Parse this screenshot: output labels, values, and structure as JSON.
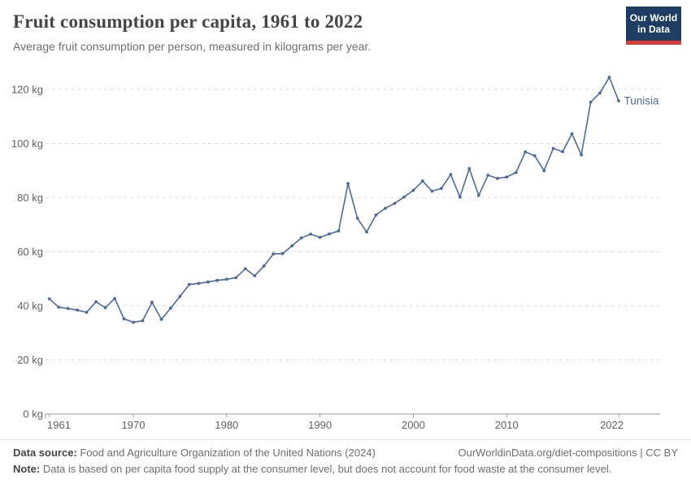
{
  "header": {
    "title": "Fruit consumption per capita, 1961 to 2022",
    "subtitle": "Average fruit consumption per person, measured in kilograms per year.",
    "logo": {
      "line1": "Our World",
      "line2": "in Data"
    }
  },
  "colors": {
    "line": "#4C6A9C",
    "entity_label": "#4C6A9C",
    "grid": "#dcdcdc",
    "axis": "#9a9a9a",
    "tick_text": "#5f5f5f",
    "logo_bg": "#1d3d63",
    "logo_stripe": "#d93b3b"
  },
  "chart_data": {
    "type": "line",
    "title": "Fruit consumption per capita, 1961 to 2022",
    "xlabel": "",
    "ylabel": "",
    "unit_suffix": " kg",
    "ylim": [
      0,
      120
    ],
    "grid": "horizontal-dashed",
    "x_ticks": [
      1961,
      1970,
      1980,
      1990,
      2000,
      2010,
      2022
    ],
    "y_ticks": [
      0,
      20,
      40,
      60,
      80,
      100,
      120
    ],
    "legend_position": "right-of-line-end",
    "series": [
      {
        "name": "Tunisia",
        "years": [
          1961,
          1962,
          1963,
          1964,
          1965,
          1966,
          1967,
          1968,
          1969,
          1970,
          1971,
          1972,
          1973,
          1974,
          1975,
          1976,
          1977,
          1978,
          1979,
          1980,
          1981,
          1982,
          1983,
          1984,
          1985,
          1986,
          1987,
          1988,
          1989,
          1990,
          1991,
          1992,
          1993,
          1994,
          1995,
          1996,
          1997,
          1998,
          1999,
          2000,
          2001,
          2002,
          2003,
          2004,
          2005,
          2006,
          2007,
          2008,
          2009,
          2010,
          2011,
          2012,
          2013,
          2014,
          2015,
          2016,
          2017,
          2018,
          2019,
          2020,
          2021,
          2022
        ],
        "values": [
          42.6,
          39.5,
          39.0,
          38.4,
          37.6,
          41.5,
          39.3,
          42.7,
          35.2,
          33.9,
          34.5,
          41.3,
          35.0,
          39.1,
          43.5,
          47.9,
          48.3,
          48.8,
          49.4,
          49.8,
          50.4,
          53.7,
          51.1,
          54.7,
          59.2,
          59.3,
          62.2,
          65.1,
          66.5,
          65.3,
          66.6,
          67.7,
          85.2,
          72.4,
          67.3,
          73.6,
          76.1,
          77.9,
          80.2,
          82.7,
          86.1,
          82.4,
          83.4,
          88.5,
          80.2,
          90.8,
          80.8,
          88.3,
          87.1,
          87.6,
          89.3,
          96.9,
          95.5,
          90.0,
          98.2,
          97.0,
          103.6,
          95.8,
          115.3,
          118.7,
          124.5,
          115.8
        ]
      }
    ]
  },
  "entity_label": "Tunisia",
  "footer": {
    "source_label": "Data source:",
    "source_text": " Food and Agriculture Organization of the United Nations (2024)",
    "url": "OurWorldinData.org/diet-compositions",
    "separator": " | ",
    "license": "CC BY",
    "note_label": "Note:",
    "note_text": " Data is based on per capita food supply at the consumer level, but does not account for food waste at the consumer level."
  }
}
